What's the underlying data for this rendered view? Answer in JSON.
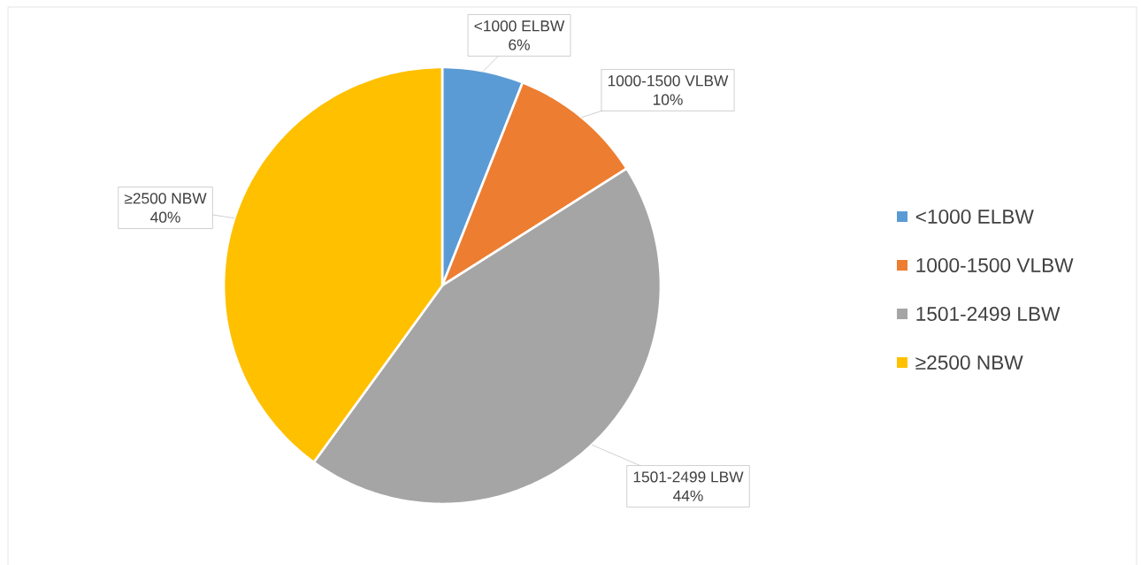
{
  "chart_data": {
    "type": "pie",
    "categories": [
      "<1000 ELBW",
      "1000-1500 VLBW",
      "1501-2499 LBW",
      "≥2500 NBW"
    ],
    "values": [
      6,
      10,
      44,
      40
    ],
    "colors": [
      "#5b9bd5",
      "#ed7d31",
      "#a5a5a5",
      "#ffc000"
    ],
    "value_labels": [
      "6%",
      "10%",
      "44%",
      "40%"
    ],
    "legend": "right"
  }
}
